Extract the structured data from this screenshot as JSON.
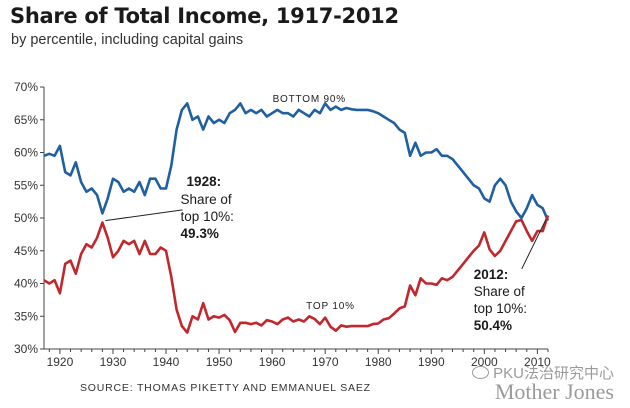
{
  "chart_data": {
    "type": "line",
    "title": "Share of Total Income, 1917-2012",
    "subtitle": "by percentile, including capital gains",
    "source": "SOURCE: THOMAS PIKETTY AND EMMANUEL SAEZ",
    "xlim": [
      1917,
      2012
    ],
    "ylim": [
      30,
      70
    ],
    "xticks": [
      1920,
      1930,
      1940,
      1950,
      1960,
      1970,
      1980,
      1990,
      2000,
      2010
    ],
    "yticks": [
      30,
      35,
      40,
      45,
      50,
      55,
      60,
      65,
      70
    ],
    "ytick_labels": [
      "30%",
      "35%",
      "40%",
      "45%",
      "50%",
      "55%",
      "60%",
      "65%",
      "70%"
    ],
    "grid": false,
    "series": [
      {
        "name": "BOTTOM 90%",
        "color": "#2060a0",
        "x": [
          1917,
          1918,
          1919,
          1920,
          1921,
          1922,
          1923,
          1924,
          1925,
          1926,
          1927,
          1928,
          1929,
          1930,
          1931,
          1932,
          1933,
          1934,
          1935,
          1936,
          1937,
          1938,
          1939,
          1940,
          1941,
          1942,
          1943,
          1944,
          1945,
          1946,
          1947,
          1948,
          1949,
          1950,
          1951,
          1952,
          1953,
          1954,
          1955,
          1956,
          1957,
          1958,
          1959,
          1960,
          1961,
          1962,
          1963,
          1964,
          1965,
          1966,
          1967,
          1968,
          1969,
          1970,
          1971,
          1972,
          1973,
          1974,
          1975,
          1976,
          1977,
          1978,
          1979,
          1980,
          1981,
          1982,
          1983,
          1984,
          1985,
          1986,
          1987,
          1988,
          1989,
          1990,
          1991,
          1992,
          1993,
          1994,
          1995,
          1996,
          1997,
          1998,
          1999,
          2000,
          2001,
          2002,
          2003,
          2004,
          2005,
          2006,
          2007,
          2008,
          2009,
          2010,
          2011,
          2012
        ],
        "values": [
          59.5,
          59.8,
          59.5,
          61,
          57,
          56.5,
          58.5,
          55.5,
          54,
          54.5,
          53.5,
          50.7,
          53,
          56,
          55.5,
          54,
          54.5,
          54,
          55.5,
          53.5,
          56,
          56,
          54.5,
          54.5,
          58,
          63.5,
          66.5,
          67.5,
          65,
          65.5,
          63.5,
          65.5,
          64.5,
          65,
          64.5,
          66,
          66.5,
          67.5,
          66,
          66.5,
          66,
          66.5,
          65.5,
          66,
          66.5,
          66,
          66,
          65.5,
          66.5,
          66,
          65.5,
          66.5,
          66,
          67.5,
          66.5,
          67,
          66.5,
          66.8,
          66.6,
          66.5,
          66.5,
          66.5,
          66.3,
          66,
          65.5,
          65,
          64.5,
          63.5,
          63,
          59.5,
          61.5,
          59.5,
          60,
          60,
          60.5,
          59.5,
          59.5,
          59,
          58,
          57,
          56,
          55,
          54.5,
          53,
          52.5,
          55,
          56,
          55,
          52.5,
          51,
          50,
          51.5,
          53.5,
          52,
          51.5,
          49.6
        ],
        "label_x": 1967,
        "label_y": 67.7
      },
      {
        "name": "TOP 10%",
        "color": "#c0282e",
        "x": [
          1917,
          1918,
          1919,
          1920,
          1921,
          1922,
          1923,
          1924,
          1925,
          1926,
          1927,
          1928,
          1929,
          1930,
          1931,
          1932,
          1933,
          1934,
          1935,
          1936,
          1937,
          1938,
          1939,
          1940,
          1941,
          1942,
          1943,
          1944,
          1945,
          1946,
          1947,
          1948,
          1949,
          1950,
          1951,
          1952,
          1953,
          1954,
          1955,
          1956,
          1957,
          1958,
          1959,
          1960,
          1961,
          1962,
          1963,
          1964,
          1965,
          1966,
          1967,
          1968,
          1969,
          1970,
          1971,
          1972,
          1973,
          1974,
          1975,
          1976,
          1977,
          1978,
          1979,
          1980,
          1981,
          1982,
          1983,
          1984,
          1985,
          1986,
          1987,
          1988,
          1989,
          1990,
          1991,
          1992,
          1993,
          1994,
          1995,
          1996,
          1997,
          1998,
          1999,
          2000,
          2001,
          2002,
          2003,
          2004,
          2005,
          2006,
          2007,
          2008,
          2009,
          2010,
          2011,
          2012
        ],
        "values": [
          40.5,
          40,
          40.5,
          38.5,
          43,
          43.5,
          41.5,
          44.5,
          46,
          45.5,
          47,
          49.3,
          47,
          44,
          45,
          46.5,
          46,
          46.5,
          44.5,
          46.5,
          44.5,
          44.5,
          45.5,
          45,
          41,
          36,
          33.5,
          32.5,
          35,
          34.5,
          37,
          34.5,
          35,
          34.8,
          35.2,
          34.4,
          32.6,
          34,
          34,
          33.8,
          34,
          33.6,
          34.4,
          34.2,
          33.8,
          34.5,
          34.8,
          34.2,
          34.5,
          34.2,
          35,
          34.6,
          33.8,
          34.8,
          33.4,
          32.8,
          33.6,
          33.4,
          33.5,
          33.5,
          33.5,
          33.5,
          33.8,
          33.9,
          34.5,
          34.7,
          35.4,
          36.2,
          36.5,
          39.7,
          38.2,
          40.8,
          40,
          40,
          39.8,
          40.8,
          40.5,
          41,
          42,
          43,
          44,
          45,
          45.8,
          47.8,
          45.2,
          44.2,
          45,
          46.5,
          48,
          49.5,
          49.7,
          48,
          46.5,
          48,
          48,
          50.4
        ],
        "label_x": 1971,
        "label_y": 36.1
      }
    ],
    "annotations": [
      {
        "year": "1928:",
        "lines": [
          "Share of",
          "top 10%:"
        ],
        "value": "49.3%",
        "x": 1928,
        "y": 49.3,
        "anchor_x": 1945,
        "anchor_y": 54.6
      },
      {
        "year": "2012:",
        "lines": [
          "Share of",
          "top 10%:"
        ],
        "value": "50.4%",
        "x": 2012,
        "y": 50.4,
        "anchor_x": 1998,
        "anchor_y": 40.7
      }
    ]
  },
  "watermark": {
    "cn": "PKU法治研究中心",
    "brand": "Mother Jones"
  }
}
